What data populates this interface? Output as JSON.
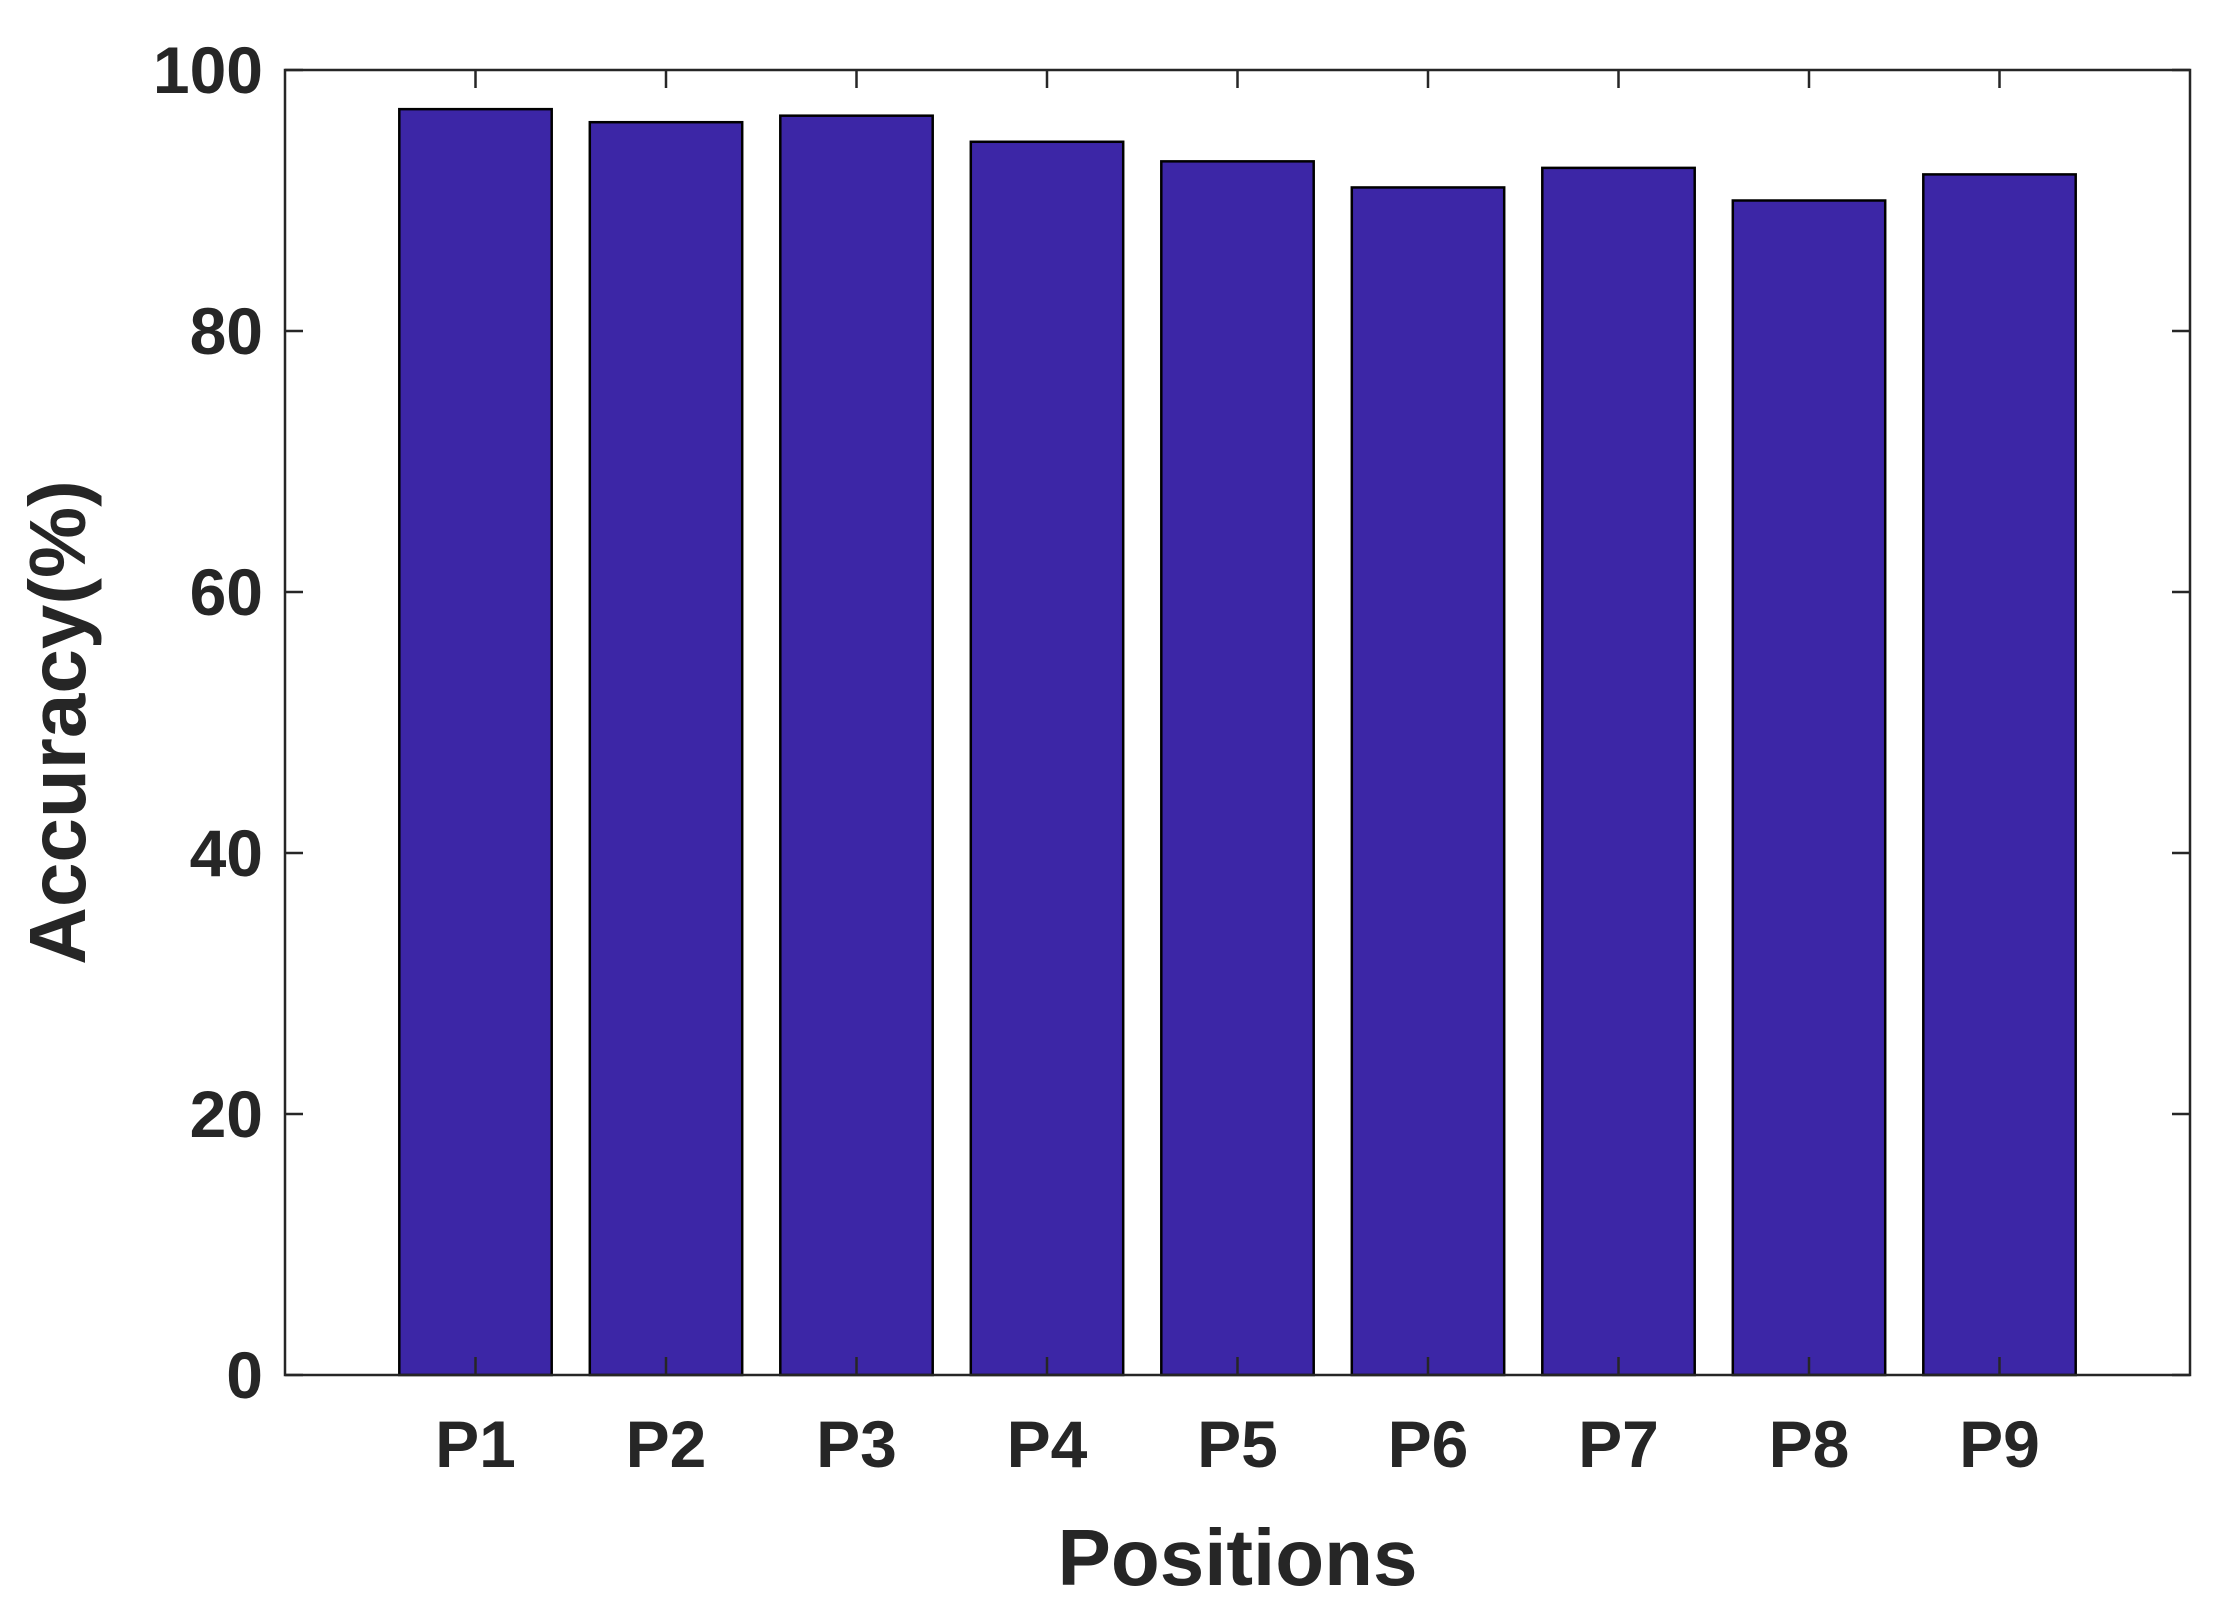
{
  "chart_data": {
    "type": "bar",
    "title": "",
    "xlabel": "Positions",
    "ylabel": "Accuracy(%)",
    "categories": [
      "P1",
      "P2",
      "P3",
      "P4",
      "P5",
      "P6",
      "P7",
      "P8",
      "P9"
    ],
    "values": [
      97,
      96,
      96.5,
      94.5,
      93,
      91,
      92.5,
      90,
      92
    ],
    "ylim": [
      0,
      100
    ],
    "yticks": [
      0,
      20,
      40,
      60,
      80,
      100
    ],
    "ytick_labels": [
      "0",
      "20",
      "40",
      "60",
      "80",
      "100"
    ],
    "grid": false,
    "legend": "none",
    "colors": {
      "bar_fill": "#3C26A6",
      "bar_edge": "#000000",
      "axis": "#262626",
      "text": "#262626"
    }
  }
}
